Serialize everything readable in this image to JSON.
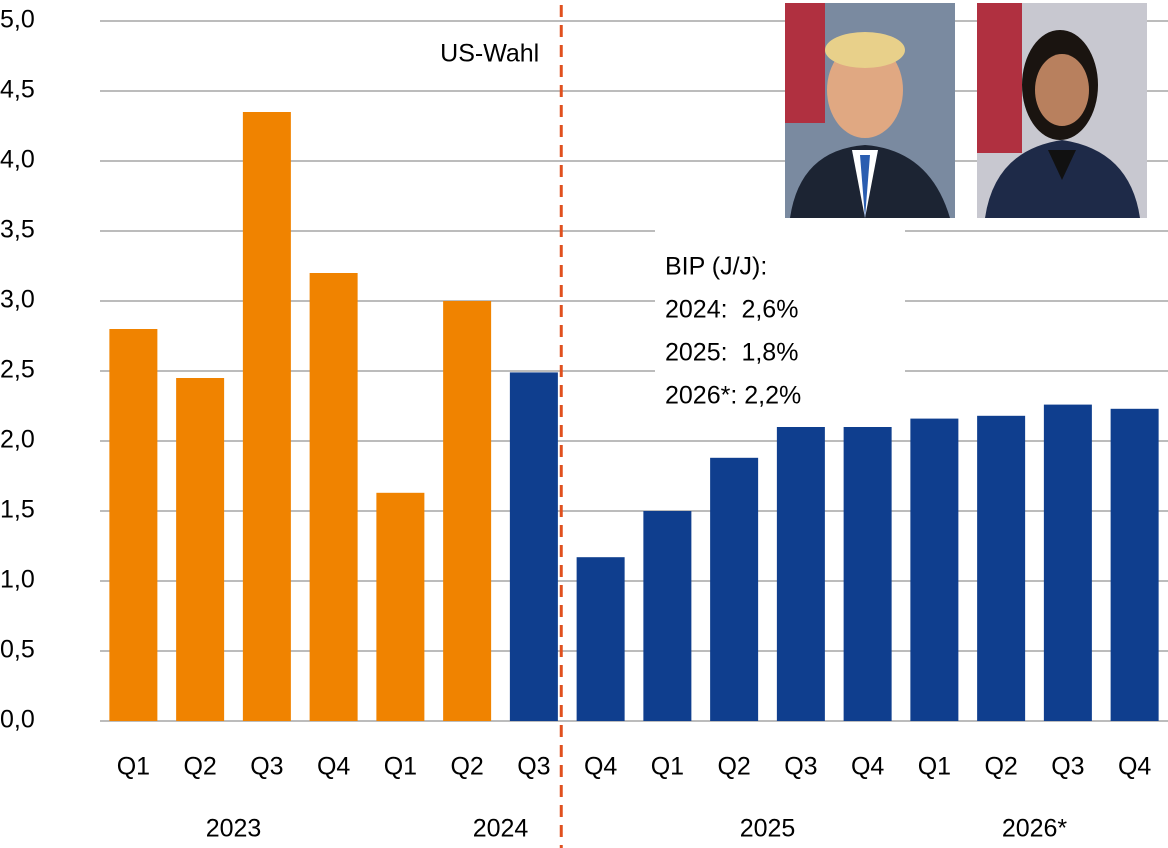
{
  "chart_data": {
    "type": "bar",
    "categories": [
      "Q1",
      "Q2",
      "Q3",
      "Q4",
      "Q1",
      "Q2",
      "Q3",
      "Q4",
      "Q1",
      "Q2",
      "Q3",
      "Q4",
      "Q1",
      "Q2",
      "Q3",
      "Q4"
    ],
    "groups": [
      {
        "label": "2023",
        "span": 4
      },
      {
        "label": "2024",
        "span": 4
      },
      {
        "label": "2025",
        "span": 4
      },
      {
        "label": "2026*",
        "span": 4
      }
    ],
    "values": [
      2.8,
      2.45,
      4.35,
      3.2,
      1.63,
      3.0,
      2.49,
      1.17,
      1.5,
      1.88,
      2.1,
      2.1,
      2.16,
      2.18,
      2.26,
      2.23
    ],
    "colors": [
      "#f08300",
      "#f08300",
      "#f08300",
      "#f08300",
      "#f08300",
      "#f08300",
      "#0f3e8e",
      "#0f3e8e",
      "#0f3e8e",
      "#0f3e8e",
      "#0f3e8e",
      "#0f3e8e",
      "#0f3e8e",
      "#0f3e8e",
      "#0f3e8e",
      "#0f3e8e"
    ],
    "ylim": [
      0,
      5
    ],
    "yticks": [
      {
        "value": 0,
        "label": "0,0"
      },
      {
        "value": 0.5,
        "label": "0,5"
      },
      {
        "value": 1,
        "label": "1,0"
      },
      {
        "value": 1.5,
        "label": "1,5"
      },
      {
        "value": 2,
        "label": "2,0"
      },
      {
        "value": 2.5,
        "label": "2,5"
      },
      {
        "value": 3,
        "label": "3,0"
      },
      {
        "value": 3.5,
        "label": "3,5"
      },
      {
        "value": 4,
        "label": "4,0"
      },
      {
        "value": 4.5,
        "label": "4,5"
      },
      {
        "value": 5,
        "label": "5,0"
      }
    ],
    "grid": true,
    "event_line": {
      "label": "US-Wahl",
      "color": "#e0501e"
    },
    "annotation": [
      "BIP (J/J):",
      "2024:  2,6%",
      "2025:  1,8%",
      "2026*: 2,2%"
    ]
  }
}
